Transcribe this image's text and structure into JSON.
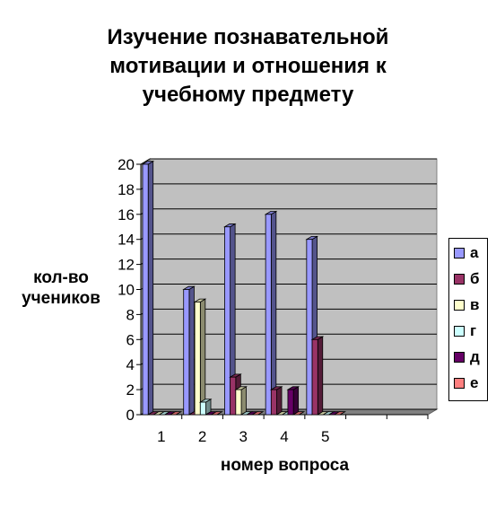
{
  "chart_data": {
    "type": "bar",
    "title_lines": [
      "Изучение познавательной",
      "мотивации и отношения к",
      "учебному предмету"
    ],
    "ylabel_lines": [
      "кол-во",
      "учеников"
    ],
    "xlabel": "номер вопроса",
    "categories": [
      "1",
      "2",
      "3",
      "4",
      "5",
      "",
      ""
    ],
    "ylim": [
      0,
      20
    ],
    "yticks": [
      0,
      2,
      4,
      6,
      8,
      10,
      12,
      14,
      16,
      18,
      20
    ],
    "grid": true,
    "legend_position": "right",
    "series": [
      {
        "name": "а",
        "color": "#9999ff",
        "values": [
          20,
          10,
          15,
          16,
          14,
          0,
          0
        ]
      },
      {
        "name": "б",
        "color": "#993366",
        "values": [
          0,
          0,
          3,
          2,
          6,
          0,
          0
        ]
      },
      {
        "name": "в",
        "color": "#ffffcc",
        "values": [
          0,
          9,
          2,
          0,
          0,
          0,
          0
        ]
      },
      {
        "name": "г",
        "color": "#ccffff",
        "values": [
          0,
          1,
          0,
          0,
          0,
          0,
          0
        ]
      },
      {
        "name": "д",
        "color": "#660066",
        "values": [
          0,
          0,
          0,
          2,
          0,
          0,
          0
        ]
      },
      {
        "name": "е",
        "color": "#ff8080",
        "values": [
          0,
          0,
          0,
          0,
          0,
          0,
          0
        ]
      }
    ],
    "wall_color": "#c0c0c0"
  }
}
